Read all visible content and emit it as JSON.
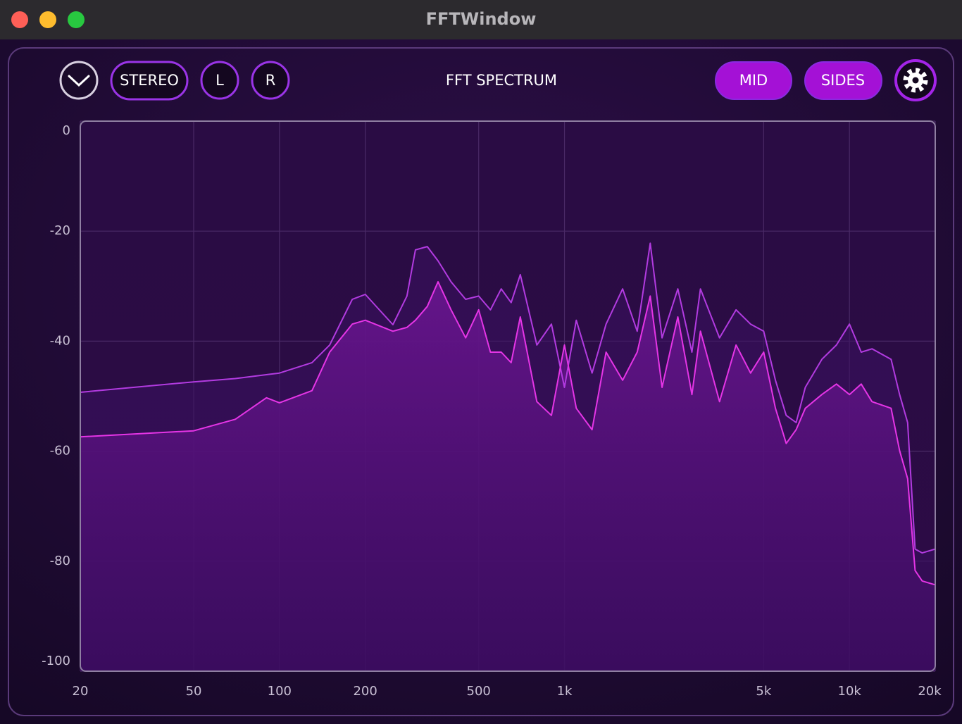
{
  "window": {
    "title": "FFTWindow"
  },
  "toolbar": {
    "stereo": "STEREO",
    "left": "L",
    "right": "R",
    "mid": "MID",
    "sides": "SIDES"
  },
  "chart_data": {
    "type": "line",
    "title": "FFT SPECTRUM",
    "x": [
      20,
      50,
      70,
      90,
      100,
      130,
      150,
      180,
      200,
      250,
      280,
      300,
      330,
      360,
      400,
      450,
      500,
      550,
      600,
      650,
      700,
      800,
      900,
      1000,
      1100,
      1250,
      1400,
      1600,
      1800,
      2000,
      2200,
      2500,
      2800,
      3000,
      3500,
      4000,
      4500,
      5000,
      5500,
      6000,
      6500,
      7000,
      8000,
      9000,
      10000,
      11000,
      12000,
      14000,
      15000,
      16000,
      17000,
      18000,
      20000
    ],
    "series": [
      {
        "color": "#b23be0",
        "values": [
          -49.3,
          -47.4,
          -46.8,
          -46.1,
          -45.8,
          -43.9,
          -40.7,
          -32.4,
          -31.5,
          -37,
          -31.8,
          -23.4,
          -22.8,
          -25.4,
          -29.2,
          -32.4,
          -31.8,
          -34.3,
          -30.5,
          -33,
          -27.9,
          -40.7,
          -36.9,
          -48.4,
          -36.2,
          -45.8,
          -36.9,
          -30.5,
          -38.2,
          -22.2,
          -39.4,
          -30.5,
          -42,
          -30.5,
          -39.4,
          -34.3,
          -36.9,
          -38.2,
          -47.1,
          -53.5,
          -54.8,
          -48.4,
          -43.3,
          -40.7,
          -36.9,
          -42,
          -41.4,
          -43.3,
          -49.7,
          -54.8,
          -77.8,
          -78.5,
          -77.8
        ]
      },
      {
        "color": "#e535e6",
        "values": [
          -57.4,
          -56.3,
          -54.2,
          -50.3,
          -51.2,
          -49,
          -42,
          -36.9,
          -36.2,
          -38.2,
          -37.5,
          -36.2,
          -33.7,
          -29.2,
          -34.3,
          -39.4,
          -34.3,
          -42,
          -42,
          -43.9,
          -35.6,
          -51,
          -53.5,
          -40.7,
          -52.2,
          -56.1,
          -42,
          -47.1,
          -42,
          -31.8,
          -48.4,
          -35.6,
          -49.7,
          -38.2,
          -51,
          -40.7,
          -45.8,
          -42,
          -52.2,
          -58.6,
          -56.1,
          -52.2,
          -49.7,
          -47.8,
          -49.7,
          -47.8,
          -51,
          -52.2,
          -59.9,
          -65,
          -81.7,
          -83.6,
          -84.3
        ]
      }
    ],
    "xlim": [
      20,
      20000
    ],
    "xscale": "log",
    "xticks": [
      20,
      50,
      100,
      200,
      500,
      {
        "value": 1000,
        "label": "1k"
      },
      {
        "value": 5000,
        "label": "5k"
      },
      {
        "value": 10000,
        "label": "10k"
      },
      {
        "value": 20000,
        "label": "20k"
      }
    ],
    "ylim": [
      -100,
      0
    ],
    "yticks": [
      0,
      -20,
      -40,
      -60,
      -80,
      -100
    ],
    "grid": true
  }
}
